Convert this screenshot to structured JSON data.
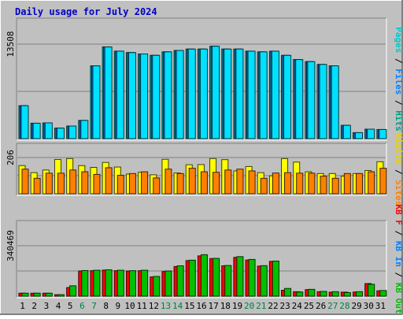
{
  "chart_data": {
    "title": "Daily usage for July 2024",
    "type": "bar",
    "categories": [
      "1",
      "2",
      "3",
      "4",
      "5",
      "6",
      "7",
      "8",
      "9",
      "10",
      "11",
      "12",
      "13",
      "14",
      "15",
      "16",
      "17",
      "18",
      "19",
      "20",
      "21",
      "22",
      "23",
      "24",
      "25",
      "26",
      "27",
      "28",
      "29",
      "30",
      "31"
    ],
    "weekend_days": [
      "6",
      "7",
      "13",
      "14",
      "20",
      "21",
      "27",
      "28"
    ],
    "panels": [
      {
        "name": "pages-files-hits",
        "ymax_label": "13508",
        "ymax": 13508,
        "legend": [
          {
            "text": "Pages",
            "color": "#00c8c8"
          },
          {
            "text": " / ",
            "color": "#000000"
          },
          {
            "text": "Files",
            "color": "#0080ff"
          },
          {
            "text": " / ",
            "color": "#000000"
          },
          {
            "text": "Hits",
            "color": "#00a080"
          }
        ],
        "series": [
          {
            "name": "Hits",
            "color": "#00c8c8",
            "values": [
              4700,
              2200,
              2250,
              1500,
              1800,
              2600,
              10400,
              13100,
              12500,
              12300,
              12100,
              11900,
              12400,
              12600,
              12800,
              12800,
              13200,
              12800,
              12800,
              12500,
              12400,
              12500,
              11900,
              11300,
              11000,
              10600,
              10400,
              1900,
              850,
              1350,
              1300
            ]
          },
          {
            "name": "Files",
            "color": "#0080ff",
            "values": [
              4700,
              2200,
              2250,
              1500,
              1800,
              2600,
              10400,
              13100,
              12500,
              12300,
              12100,
              11900,
              12400,
              12600,
              12800,
              12800,
              13200,
              12800,
              12800,
              12500,
              12400,
              12500,
              11900,
              11300,
              11000,
              10600,
              10400,
              1900,
              850,
              1350,
              1300
            ]
          },
          {
            "name": "Pages",
            "color": "#00e0ff",
            "values": [
              4700,
              2200,
              2250,
              1500,
              1800,
              2600,
              10400,
              13100,
              12500,
              12300,
              12100,
              11900,
              12400,
              12600,
              12800,
              12800,
              13200,
              12800,
              12800,
              12500,
              12400,
              12500,
              11900,
              11300,
              11000,
              10600,
              10400,
              1900,
              850,
              1350,
              1300
            ]
          }
        ]
      },
      {
        "name": "visits-sites",
        "ymax_label": "206",
        "ymax": 206,
        "legend": [
          {
            "text": "Visits",
            "color": "#e8d000"
          },
          {
            "text": " / ",
            "color": "#000000"
          },
          {
            "text": "Sites",
            "color": "#ff8000"
          }
        ],
        "series": [
          {
            "name": "Visits",
            "color": "#ffff00",
            "values": [
              160,
              120,
              135,
              195,
              200,
              160,
              150,
              178,
              152,
              112,
              122,
              108,
              196,
              118,
              165,
              166,
              200,
              194,
              130,
              155,
              120,
              102,
              200,
              180,
              125,
              115,
              115,
              100,
              115,
              132,
              182
            ]
          },
          {
            "name": "Sites",
            "color": "#ff8000",
            "values": [
              140,
              88,
              117,
              117,
              135,
              125,
              110,
              148,
              105,
              115,
              125,
              90,
              140,
              115,
              145,
              125,
              122,
              135,
              140,
              130,
              88,
              118,
              120,
              117,
              117,
              100,
              88,
              115,
              115,
              125,
              145
            ]
          }
        ]
      },
      {
        "name": "kbin-kbout-kbf",
        "ymax_label": "340469",
        "ymax": 340469,
        "legend": [
          {
            "text": "KB F",
            "color": "#ff0000"
          },
          {
            "text": " / ",
            "color": "#000000"
          },
          {
            "text": "KB In",
            "color": "#0080ff"
          },
          {
            "text": " / ",
            "color": "#000000"
          },
          {
            "text": "KB Out",
            "color": "#00c000"
          }
        ],
        "series": [
          {
            "name": "KB F",
            "color": "#ff0000",
            "values": [
              20000,
              20000,
              20000,
              10000,
              58000,
              170000,
              172000,
              176000,
              172000,
              170000,
              172000,
              130000,
              166000,
              200000,
              240000,
              272000,
              254000,
              205000,
              262000,
              244000,
              203000,
              235000,
              40000,
              30000,
              44000,
              30000,
              27000,
              27000,
              28000,
              85000,
              36000
            ]
          },
          {
            "name": "KB Out",
            "color": "#00c000",
            "values": [
              20000,
              20000,
              20000,
              10000,
              70000,
              173000,
              175000,
              178000,
              175000,
              172000,
              175000,
              133000,
              170000,
              205000,
              243000,
              280000,
              255000,
              207000,
              267000,
              248000,
              206000,
              237000,
              52000,
              28000,
              46000,
              32000,
              30000,
              24000,
              30000,
              80000,
              38000
            ]
          }
        ]
      }
    ]
  }
}
